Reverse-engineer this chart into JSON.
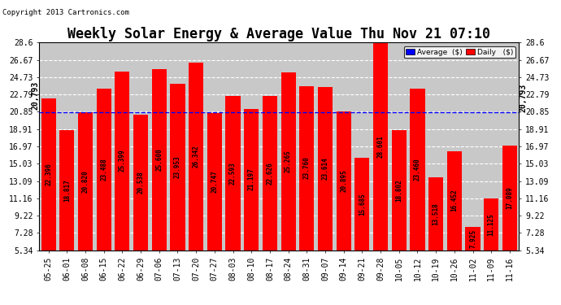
{
  "title": "Weekly Solar Energy & Average Value Thu Nov 21 07:10",
  "copyright": "Copyright 2013 Cartronics.com",
  "categories": [
    "05-25",
    "06-01",
    "06-08",
    "06-15",
    "06-22",
    "06-29",
    "07-06",
    "07-13",
    "07-20",
    "07-27",
    "08-03",
    "08-10",
    "08-17",
    "08-24",
    "08-31",
    "09-07",
    "09-14",
    "09-21",
    "09-28",
    "10-05",
    "10-12",
    "10-19",
    "10-26",
    "11-02",
    "11-09",
    "11-16"
  ],
  "values": [
    22.396,
    18.817,
    20.82,
    23.488,
    25.399,
    20.538,
    25.6,
    23.953,
    26.342,
    20.747,
    22.593,
    21.197,
    22.626,
    25.265,
    23.76,
    23.614,
    20.895,
    15.685,
    28.601,
    18.802,
    23.46,
    13.518,
    16.452,
    7.925,
    11.125,
    17.089
  ],
  "bar_labels": [
    "22.396",
    "18.817",
    "20.820",
    "23.488",
    "25.399",
    "20.538",
    "25.600",
    "23.953",
    "26.342",
    "20.747",
    "22.593",
    "21.197",
    "22.626",
    "25.265",
    "23.760",
    "23.614",
    "20.895",
    "15.685",
    "28.601",
    "18.802",
    "23.460",
    "13.518",
    "16.452",
    "7.925",
    "11.125",
    "17.089"
  ],
  "average_line": 20.793,
  "bar_color": "#FF0000",
  "average_line_color": "#0000FF",
  "background_color": "#FFFFFF",
  "plot_bg_color": "#C8C8C8",
  "grid_color": "#FFFFFF",
  "ylim_min": 5.34,
  "ylim_max": 28.6,
  "yticks": [
    5.34,
    7.28,
    9.22,
    11.16,
    13.09,
    15.03,
    16.97,
    18.91,
    20.85,
    22.79,
    24.73,
    26.67,
    28.6
  ],
  "avg_label": "20,793",
  "legend_avg_color": "#0000FF",
  "legend_daily_color": "#FF0000",
  "title_fontsize": 12,
  "tick_fontsize": 7,
  "bar_value_fontsize": 5.5,
  "copyright_fontsize": 6.5
}
